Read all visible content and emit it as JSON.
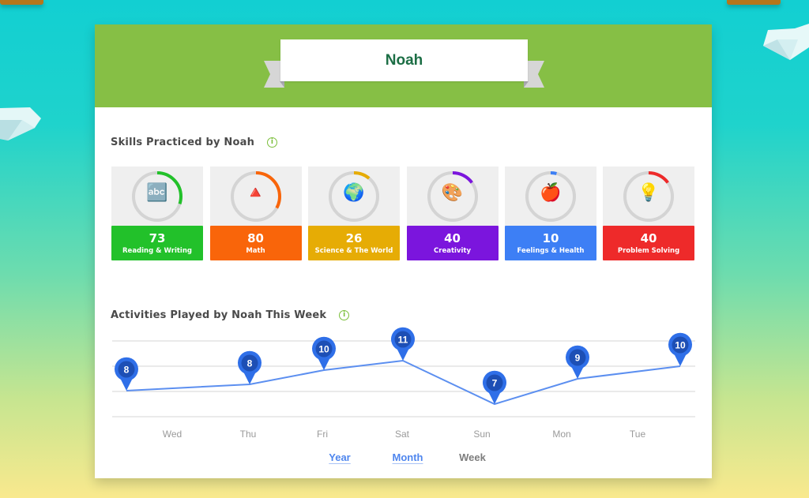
{
  "profile": {
    "name": "Noah"
  },
  "skills_section": {
    "title": "Skills Practiced by Noah",
    "info_icon": "info-icon",
    "items": [
      {
        "value": "73",
        "label": "Reading & Writing",
        "color": "#22c12a",
        "percent": 0.3,
        "icon": "abc-blocks-icon",
        "glyph": "🔤"
      },
      {
        "value": "80",
        "label": "Math",
        "color": "#f9650a",
        "percent": 0.33,
        "icon": "math-shapes-icon",
        "glyph": "🔺"
      },
      {
        "value": "26",
        "label": "Science & The World",
        "color": "#e6ac05",
        "percent": 0.11,
        "icon": "globe-icon",
        "glyph": "🌍"
      },
      {
        "value": "40",
        "label": "Creativity",
        "color": "#7b15dd",
        "percent": 0.15,
        "icon": "paint-palette-icon",
        "glyph": "🎨"
      },
      {
        "value": "10",
        "label": "Feelings & Health",
        "color": "#3d7ff5",
        "percent": 0.04,
        "icon": "people-apple-icon",
        "glyph": "🍎"
      },
      {
        "value": "40",
        "label": "Problem Solving",
        "color": "#ee2a2a",
        "percent": 0.15,
        "icon": "lightbulb-gear-icon",
        "glyph": "💡"
      }
    ]
  },
  "activities_section": {
    "title": "Activities Played by Noah This Week",
    "info_icon": "info-icon",
    "periods": [
      {
        "label": "Year",
        "active": false
      },
      {
        "label": "Month",
        "active": false
      },
      {
        "label": "Week",
        "active": true
      }
    ]
  },
  "chart_data": {
    "type": "line",
    "title": "Activities Played by Noah This Week",
    "categories": [
      "Wed",
      "Thu",
      "Fri",
      "Sat",
      "Sun",
      "Mon",
      "Tue"
    ],
    "values": [
      8,
      8,
      10,
      11,
      7,
      9,
      10
    ],
    "series": [
      {
        "name": "Activities",
        "values": [
          8,
          8,
          10,
          11,
          7,
          9,
          10
        ]
      }
    ],
    "xlabel": "",
    "ylabel": "",
    "grid": true,
    "data_labels": "pin markers",
    "line_color": "#5c8ff0",
    "marker_color": "#2f6fe8"
  },
  "colors": {
    "header_green": "#86bf45",
    "name_green": "#1c6e45",
    "link_blue": "#4f86ee"
  }
}
